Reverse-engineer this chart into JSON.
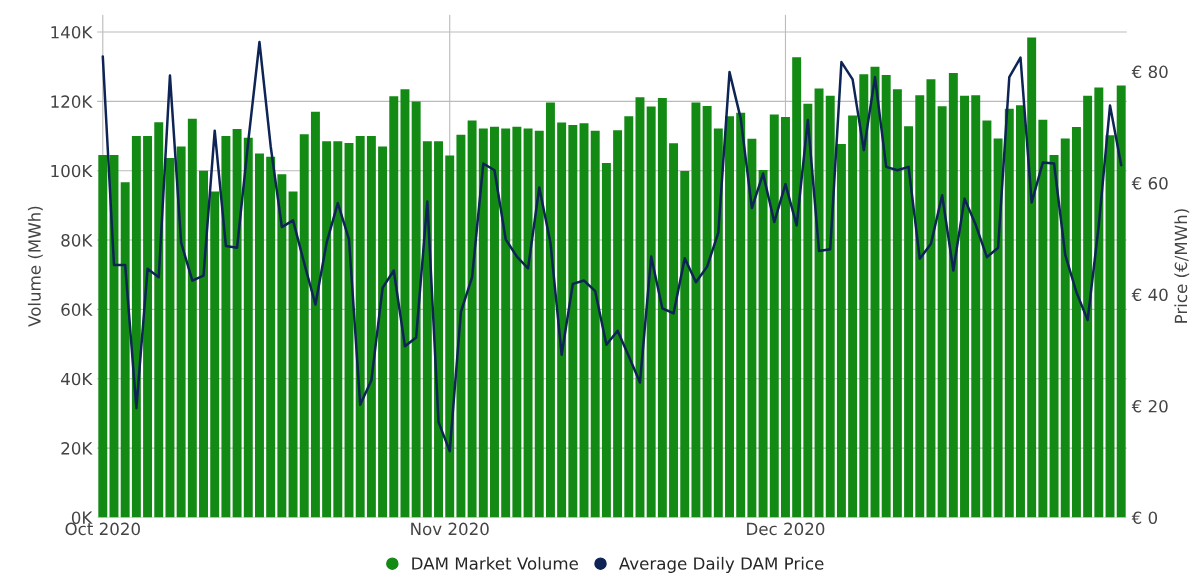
{
  "chart_data": {
    "type": "bar",
    "x": [
      "2020-10-01",
      "2020-10-02",
      "2020-10-03",
      "2020-10-04",
      "2020-10-05",
      "2020-10-06",
      "2020-10-07",
      "2020-10-08",
      "2020-10-09",
      "2020-10-10",
      "2020-10-11",
      "2020-10-12",
      "2020-10-13",
      "2020-10-14",
      "2020-10-15",
      "2020-10-16",
      "2020-10-17",
      "2020-10-18",
      "2020-10-19",
      "2020-10-20",
      "2020-10-21",
      "2020-10-22",
      "2020-10-23",
      "2020-10-24",
      "2020-10-25",
      "2020-10-26",
      "2020-10-27",
      "2020-10-28",
      "2020-10-29",
      "2020-10-30",
      "2020-10-31",
      "2020-11-01",
      "2020-11-02",
      "2020-11-03",
      "2020-11-04",
      "2020-11-05",
      "2020-11-06",
      "2020-11-07",
      "2020-11-08",
      "2020-11-09",
      "2020-11-10",
      "2020-11-11",
      "2020-11-12",
      "2020-11-13",
      "2020-11-14",
      "2020-11-15",
      "2020-11-16",
      "2020-11-17",
      "2020-11-18",
      "2020-11-19",
      "2020-11-20",
      "2020-11-21",
      "2020-11-22",
      "2020-11-23",
      "2020-11-24",
      "2020-11-25",
      "2020-11-26",
      "2020-11-27",
      "2020-11-28",
      "2020-11-29",
      "2020-11-30",
      "2020-12-01",
      "2020-12-02",
      "2020-12-03",
      "2020-12-04",
      "2020-12-05",
      "2020-12-06",
      "2020-12-07",
      "2020-12-08",
      "2020-12-09",
      "2020-12-10",
      "2020-12-11",
      "2020-12-12",
      "2020-12-13",
      "2020-12-14",
      "2020-12-15",
      "2020-12-16",
      "2020-12-17",
      "2020-12-18",
      "2020-12-19",
      "2020-12-20",
      "2020-12-21",
      "2020-12-22",
      "2020-12-23",
      "2020-12-24",
      "2020-12-25",
      "2020-12-26",
      "2020-12-27",
      "2020-12-28",
      "2020-12-29",
      "2020-12-30",
      "2020-12-31"
    ],
    "series": [
      {
        "name": "DAM Market Volume",
        "color": "#138a14",
        "values": [
          104500,
          104500,
          96700,
          110000,
          110000,
          114000,
          103700,
          107000,
          115000,
          100000,
          94000,
          110000,
          112000,
          109500,
          105000,
          104000,
          99000,
          94000,
          110500,
          117000,
          108500,
          108500,
          108000,
          110000,
          110000,
          107000,
          121500,
          123500,
          120000,
          108500,
          108500,
          104400,
          110400,
          114500,
          112200,
          112700,
          112200,
          112700,
          112200,
          111500,
          119700,
          113900,
          113200,
          113700,
          111500,
          102200,
          111700,
          115700,
          121200,
          118500,
          121000,
          107900,
          99900,
          119700,
          118700,
          112200,
          115700,
          116700,
          109200,
          100200,
          116200,
          115500,
          132700,
          119300,
          123700,
          121600,
          107700,
          115900,
          127800,
          130000,
          127600,
          123500,
          112800,
          121800,
          126400,
          118600,
          128200,
          121600,
          121800,
          114500,
          109300,
          117900,
          118900,
          138400,
          114700,
          104500,
          109300,
          112600,
          121600,
          124000,
          110200,
          124600
        ]
      },
      {
        "name": "Average Daily DAM Price",
        "type": "line",
        "axis": "y2",
        "color": "#0d2454",
        "values": [
          82.7,
          45.3,
          45.3,
          19.6,
          44.6,
          43.1,
          79.3,
          49.3,
          42.5,
          43.4,
          69.4,
          48.7,
          48.4,
          67.5,
          85.3,
          66.6,
          52.1,
          53.3,
          45.6,
          38.2,
          49.3,
          56.4,
          49.9,
          20.2,
          24.6,
          41.2,
          44.3,
          30.7,
          32.3,
          56.7,
          17.1,
          11.9,
          36.9,
          43.1,
          63.5,
          62.3,
          49.9,
          46.8,
          44.7,
          59.2,
          49.3,
          29.2,
          41.9,
          42.5,
          40.6,
          31.0,
          33.5,
          28.9,
          24.2,
          46.8,
          37.5,
          36.6,
          46.5,
          42.2,
          45.0,
          51.1,
          79.9,
          71.6,
          55.5,
          61.7,
          53.0,
          59.8,
          52.4,
          71.3,
          47.8,
          48.1,
          81.7,
          78.6,
          65.9,
          79.0,
          62.9,
          62.3,
          62.9,
          46.4,
          49.1,
          57.8,
          44.3,
          57.2,
          52.5,
          46.7,
          48.4,
          79.0,
          82.5,
          56.5,
          63.7,
          63.5,
          47.1,
          40.4,
          35.4,
          52.5,
          73.9,
          63.2
        ]
      }
    ],
    "ylabel": "Volume (MWh)",
    "y2label": "Price (€/MWh)",
    "xlim": [
      "2020-09-30T12:00",
      "2020-12-31T12:00"
    ],
    "xticks": [
      {
        "value": "2020-10-01",
        "label": "Oct 2020"
      },
      {
        "value": "2020-11-01",
        "label": "Nov 2020"
      },
      {
        "value": "2020-12-01",
        "label": "Dec 2020"
      }
    ],
    "ylim": [
      0,
      145000
    ],
    "yticks": [
      {
        "value": 0,
        "label": "0K"
      },
      {
        "value": 20000,
        "label": "20K"
      },
      {
        "value": 40000,
        "label": "40K"
      },
      {
        "value": 60000,
        "label": "60K"
      },
      {
        "value": 80000,
        "label": "80K"
      },
      {
        "value": 100000,
        "label": "100K"
      },
      {
        "value": 120000,
        "label": "120K"
      },
      {
        "value": 140000,
        "label": "140K"
      }
    ],
    "y2lim": [
      0,
      90.2
    ],
    "y2ticks": [
      {
        "value": 0,
        "label": "€ 0"
      },
      {
        "value": 20,
        "label": "€ 20"
      },
      {
        "value": 40,
        "label": "€ 40"
      },
      {
        "value": 60,
        "label": "€ 60"
      },
      {
        "value": 80,
        "label": "€ 80"
      }
    ],
    "grid": true,
    "legend": "bottom",
    "marker": "none",
    "line_style": "solid"
  }
}
